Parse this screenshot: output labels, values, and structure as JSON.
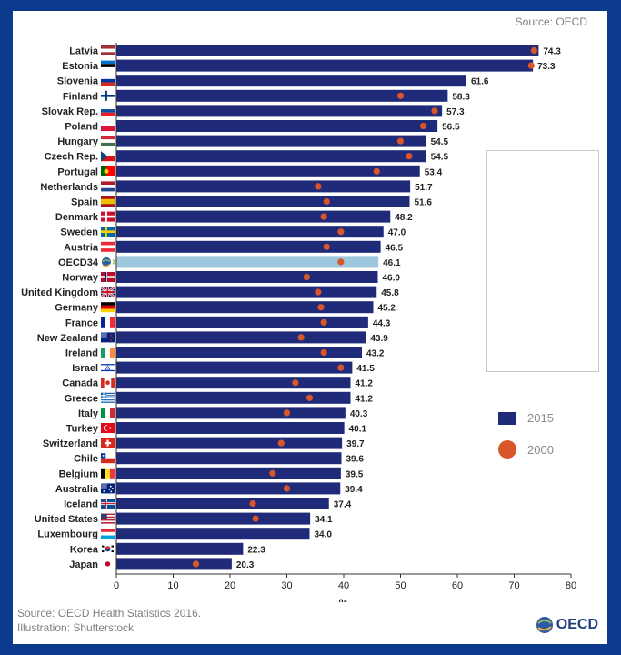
{
  "header": {
    "source": "Source: OECD"
  },
  "footer": {
    "source": "Source: OECD Health Statistics 2016.",
    "illustration": "Illustration: Shutterstock",
    "logo_text": "OECD"
  },
  "colors": {
    "bar_2015": "#1f2a78",
    "bar_highlight": "#9dc7dc",
    "dot_2000": "#d9562a",
    "frame": "#0c3a8c"
  },
  "chart_data": {
    "type": "bar",
    "orientation": "horizontal",
    "xlabel": "%",
    "xlim": [
      0,
      80
    ],
    "xticks": [
      0,
      10,
      20,
      30,
      40,
      50,
      60,
      70,
      80
    ],
    "grid": false,
    "legend_position": "right",
    "highlight_category": "OECD34",
    "categories": [
      "Latvia",
      "Estonia",
      "Slovenia",
      "Finland",
      "Slovak Rep.",
      "Poland",
      "Hungary",
      "Czech Rep.",
      "Portugal",
      "Netherlands",
      "Spain",
      "Denmark",
      "Sweden",
      "Austria",
      "OECD34",
      "Norway",
      "United Kingdom",
      "Germany",
      "France",
      "New Zealand",
      "Ireland",
      "Israel",
      "Canada",
      "Greece",
      "Italy",
      "Turkey",
      "Switzerland",
      "Chile",
      "Belgium",
      "Australia",
      "Iceland",
      "United States",
      "Luxembourg",
      "Korea",
      "Japan"
    ],
    "series": [
      {
        "name": "2015",
        "marker": "bar",
        "values": [
          74.3,
          73.3,
          61.6,
          58.3,
          57.3,
          56.5,
          54.5,
          54.5,
          53.4,
          51.7,
          51.6,
          48.2,
          47.0,
          46.5,
          46.1,
          46.0,
          45.8,
          45.2,
          44.3,
          43.9,
          43.2,
          41.5,
          41.2,
          41.2,
          40.3,
          40.1,
          39.7,
          39.6,
          39.5,
          39.4,
          37.4,
          34.1,
          34.0,
          22.3,
          20.3
        ],
        "labels": [
          "74.3",
          "73.3",
          "61.6",
          "58.3",
          "57.3",
          "56.5",
          "54.5",
          "54.5",
          "53.4",
          "51.7",
          "51.6",
          "48.2",
          "47.0",
          "46.5",
          "46.1",
          "46.0",
          "45.8",
          "45.2",
          "44.3",
          "43.9",
          "43.2",
          "41.5",
          "41.2",
          "41.2",
          "40.3",
          "40.1",
          "39.7",
          "39.6",
          "39.5",
          "39.4",
          "37.4",
          "34.1",
          "34.0",
          "22.3",
          "20.3"
        ]
      },
      {
        "name": "2000",
        "marker": "dot",
        "values": [
          73.5,
          73.0,
          null,
          50.0,
          56.0,
          54.0,
          50.0,
          51.5,
          45.8,
          35.5,
          37.0,
          36.5,
          39.5,
          37.0,
          39.5,
          33.5,
          35.5,
          36.0,
          36.5,
          32.5,
          36.5,
          39.5,
          31.5,
          34.0,
          30.0,
          null,
          29.0,
          null,
          27.5,
          30.0,
          24.0,
          24.5,
          null,
          null,
          14.0
        ]
      }
    ],
    "flags": [
      "latvia",
      "estonia",
      "slovenia",
      "finland",
      "slovakia",
      "poland",
      "hungary",
      "czech",
      "portugal",
      "netherlands",
      "spain",
      "denmark",
      "sweden",
      "austria",
      "oecd-globe",
      "norway",
      "uk",
      "germany",
      "france",
      "new-zealand",
      "ireland",
      "israel",
      "canada",
      "greece",
      "italy",
      "turkey",
      "switzerland",
      "chile",
      "belgium",
      "australia",
      "iceland",
      "usa",
      "luxembourg",
      "korea",
      "japan"
    ]
  }
}
